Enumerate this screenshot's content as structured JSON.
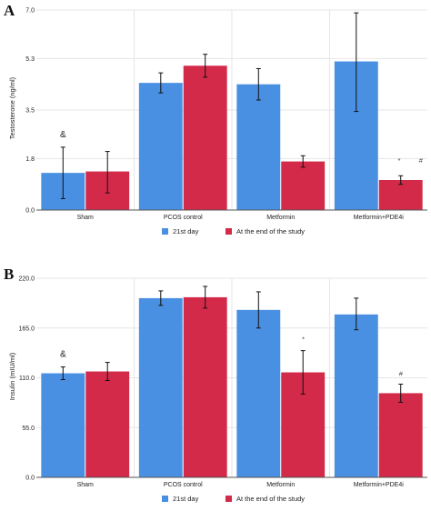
{
  "colors": {
    "series_21st_day": "#4a90e2",
    "series_end_of_study": "#d42a4a",
    "grid": "#e6e6e6",
    "axis": "#555555"
  },
  "chart_data": [
    {
      "panel": "A",
      "type": "bar",
      "ylabel": "Testosterone (ng/ml)",
      "yticks": [
        "0.0",
        "1.8",
        "3.5",
        "5.3",
        "7.0"
      ],
      "ylim": [
        0,
        7.0
      ],
      "categories": [
        "Sham",
        "PCOS control",
        "Metformin",
        "Metformin+PDE4i"
      ],
      "legend_position": "bottom",
      "series": [
        {
          "name": "21st day",
          "values": [
            1.3,
            4.45,
            4.4,
            5.2
          ],
          "err_low": [
            0.4,
            4.1,
            3.85,
            3.45
          ],
          "err_high": [
            2.2,
            4.8,
            4.95,
            6.9
          ]
        },
        {
          "name": "At the end of the study",
          "values": [
            1.35,
            5.05,
            1.7,
            1.05
          ],
          "err_low": [
            0.6,
            4.65,
            1.5,
            0.9
          ],
          "err_high": [
            2.05,
            5.45,
            1.9,
            1.2
          ]
        }
      ],
      "annotations": [
        {
          "text": "&",
          "category": 0,
          "series": 0,
          "y": 2.55
        },
        {
          "text": "*",
          "category": 3,
          "series": 1,
          "y": 1.65,
          "dx": -2
        },
        {
          "text": "#",
          "category": 3,
          "series": 1,
          "y": 1.65,
          "dx": 22
        }
      ]
    },
    {
      "panel": "B",
      "type": "bar",
      "ylabel": "Insulin (mIU/ml)",
      "yticks": [
        "0.0",
        "55.0",
        "110.0",
        "165.0",
        "220.0"
      ],
      "ylim": [
        0,
        220
      ],
      "categories": [
        "Sham",
        "PCOS control",
        "Metformin",
        "Metformin+PDE4i"
      ],
      "legend_position": "bottom",
      "series": [
        {
          "name": "21st day",
          "values": [
            115,
            198,
            185,
            180
          ],
          "err_low": [
            108,
            190,
            165,
            163
          ],
          "err_high": [
            122,
            206,
            205,
            198
          ]
        },
        {
          "name": "At the end of the study",
          "values": [
            117,
            199,
            116,
            93
          ],
          "err_low": [
            107,
            187,
            92,
            83
          ],
          "err_high": [
            127,
            211,
            140,
            103
          ]
        }
      ],
      "annotations": [
        {
          "text": "&",
          "category": 0,
          "series": 0,
          "y": 133
        },
        {
          "text": "*",
          "category": 2,
          "series": 1,
          "y": 150
        },
        {
          "text": "#",
          "category": 3,
          "series": 1,
          "y": 112
        }
      ]
    }
  ]
}
